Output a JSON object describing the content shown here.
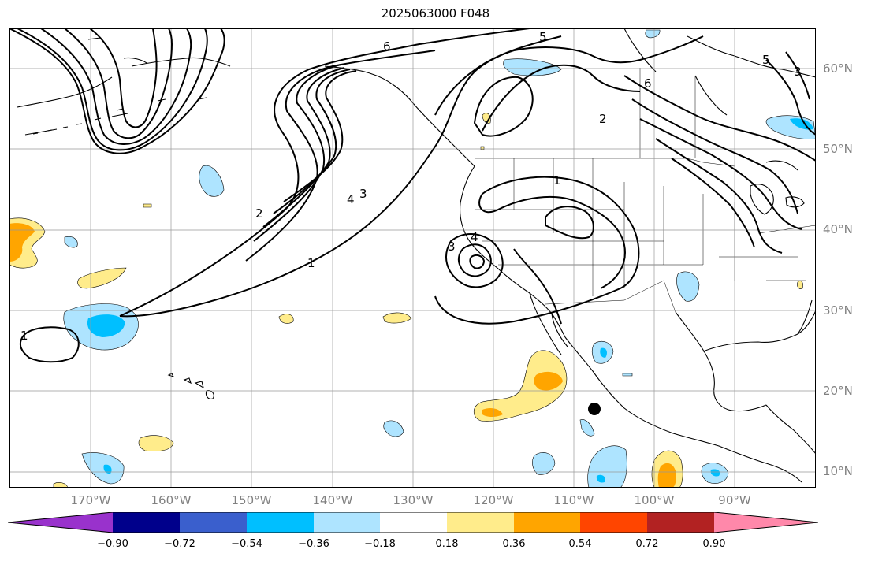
{
  "title": "2025063000 F048",
  "lat_labels": [
    "60°N",
    "50°N",
    "40°N",
    "30°N",
    "20°N",
    "10°N"
  ],
  "lon_labels": [
    "170°W",
    "160°W",
    "150°W",
    "140°W",
    "130°W",
    "120°W",
    "110°W",
    "100°W",
    "90°W"
  ],
  "contour_labels": [
    "1",
    "1",
    "1",
    "2",
    "2",
    "3",
    "3",
    "4",
    "4",
    "5",
    "5",
    "6",
    "6",
    "3"
  ],
  "colorbar": {
    "ticks": [
      "−0.90",
      "−0.72",
      "−0.54",
      "−0.36",
      "−0.18",
      "0.18",
      "0.36",
      "0.54",
      "0.72",
      "0.90"
    ],
    "colors": [
      "#9932cc",
      "#00008b",
      "#3a5fcd",
      "#00bfff",
      "#aee4ff",
      "#ffffff",
      "#ffec8b",
      "#ffa500",
      "#ff4500",
      "#b22222",
      "#ff88aa"
    ]
  },
  "colors": {
    "light_blue": "#aee4ff",
    "deep_sky_blue": "#00bfff",
    "light_yellow": "#ffec8b",
    "orange": "#ffa500"
  }
}
